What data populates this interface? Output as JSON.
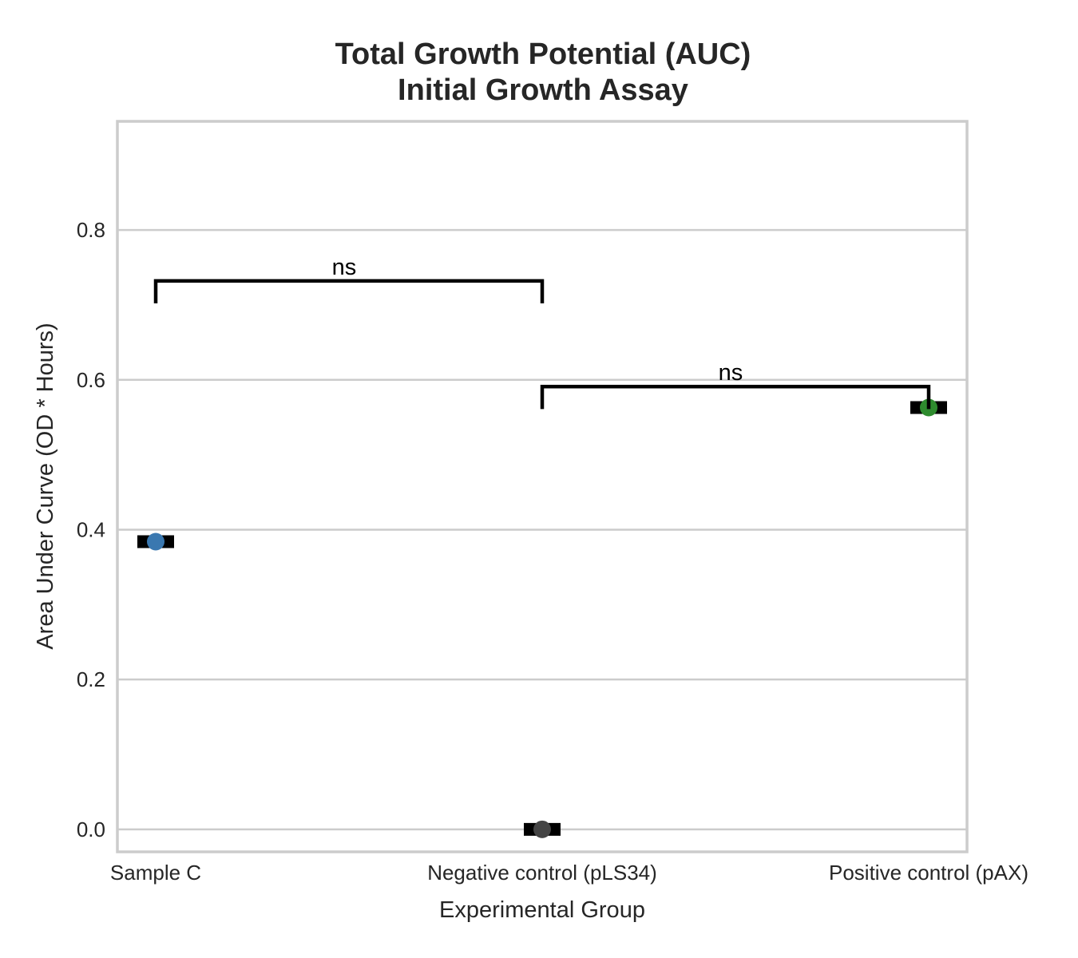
{
  "chart_data": {
    "type": "scatter",
    "title": [
      "Total Growth Potential (AUC)",
      "Initial Growth Assay"
    ],
    "xlabel": "Experimental Group",
    "ylabel": "Area Under Curve (OD * Hours)",
    "ylim": [
      -0.03,
      0.945
    ],
    "yticks": [
      0.0,
      0.2,
      0.4,
      0.6,
      0.8
    ],
    "ytick_labels": [
      "0.0",
      "0.2",
      "0.4",
      "0.6",
      "0.8"
    ],
    "grid": "horizontal",
    "categories": [
      "Sample C",
      "Negative control (pLS34)",
      "Positive control (pAX)"
    ],
    "points": [
      {
        "category": "Sample C",
        "value": 0.384,
        "color": "#3a78b0"
      },
      {
        "category": "Negative control (pLS34)",
        "value": 0.0,
        "color": "#444444"
      },
      {
        "category": "Positive control (pAX)",
        "value": 0.563,
        "color": "#2e8b2e"
      }
    ],
    "mean_markers": [
      {
        "category": "Sample C",
        "value": 0.384
      },
      {
        "category": "Negative control (pLS34)",
        "value": 0.0
      },
      {
        "category": "Positive control (pAX)",
        "value": 0.563
      }
    ],
    "significance": [
      {
        "from": "Sample C",
        "to": "Negative control (pLS34)",
        "y": 0.732,
        "drop": 0.03,
        "label": "ns"
      },
      {
        "from": "Negative control (pLS34)",
        "to": "Positive control (pAX)",
        "y": 0.591,
        "drop": 0.03,
        "label": "ns"
      }
    ]
  }
}
